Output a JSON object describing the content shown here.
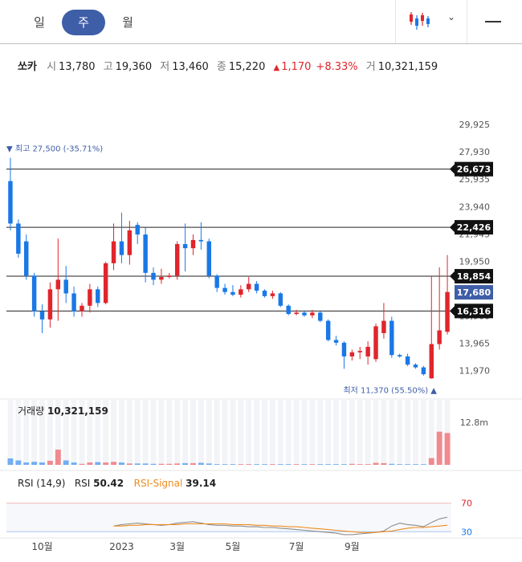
{
  "tabs": [
    {
      "label": "일",
      "active": false
    },
    {
      "label": "주",
      "active": true
    },
    {
      "label": "월",
      "active": false
    }
  ],
  "chart_type_icon": "candlestick-icon",
  "quote": {
    "name": "쏘카",
    "open_label": "시",
    "open": "13,780",
    "high_label": "고",
    "high": "19,360",
    "low_label": "저",
    "low": "13,460",
    "close_label": "종",
    "close": "15,220",
    "change_arrow": "▲",
    "change": "1,170",
    "change_pct": "+8.33%",
    "volume_label": "거",
    "volume": "10,321,159"
  },
  "colors": {
    "up": "#e0252c",
    "down": "#1a78e6",
    "accent": "#3f5ea8",
    "rsi": "#8c8c8c",
    "signal": "#f08c1e"
  },
  "chart_data": {
    "type": "candlestick",
    "price_axis_ticks": [
      "29,925",
      "27,930",
      "25,935",
      "23,940",
      "21,945",
      "19,950",
      "17,955",
      "15,960",
      "13,965",
      "11,970"
    ],
    "price_ylim": [
      10300,
      31400
    ],
    "horizontal_levels": [
      {
        "label": "26,673",
        "value": 26673
      },
      {
        "label": "22,426",
        "value": 22426
      },
      {
        "label": "18,854",
        "value": 18854
      },
      {
        "label": "16,316",
        "value": 16316
      }
    ],
    "current_price": {
      "label": "17,680",
      "value": 17680
    },
    "max_annotation": {
      "text": "▼ 최고 27,500 (-35.71%)",
      "value": 27500
    },
    "min_annotation": {
      "text": "최저 11,370 (55.50%) ▲",
      "value": 11370
    },
    "x_ticks": [
      {
        "label": "10월",
        "index": 4
      },
      {
        "label": "2023",
        "index": 14
      },
      {
        "label": "3월",
        "index": 21
      },
      {
        "label": "5월",
        "index": 28
      },
      {
        "label": "7월",
        "index": 36
      },
      {
        "label": "9월",
        "index": 43
      }
    ],
    "candles": [
      {
        "o": 25800,
        "h": 27500,
        "l": 22200,
        "c": 22700
      },
      {
        "o": 22700,
        "h": 23000,
        "l": 20200,
        "c": 20500
      },
      {
        "o": 21400,
        "h": 21900,
        "l": 18600,
        "c": 18900
      },
      {
        "o": 18900,
        "h": 19100,
        "l": 15900,
        "c": 16300
      },
      {
        "o": 16300,
        "h": 16800,
        "l": 14700,
        "c": 15700
      },
      {
        "o": 15700,
        "h": 18400,
        "l": 15100,
        "c": 17900
      },
      {
        "o": 17900,
        "h": 21600,
        "l": 15600,
        "c": 18600
      },
      {
        "o": 18600,
        "h": 19600,
        "l": 16900,
        "c": 17600
      },
      {
        "o": 17600,
        "h": 18100,
        "l": 15900,
        "c": 16300
      },
      {
        "o": 16300,
        "h": 16900,
        "l": 15900,
        "c": 16700
      },
      {
        "o": 16700,
        "h": 18300,
        "l": 16200,
        "c": 17900
      },
      {
        "o": 17900,
        "h": 18100,
        "l": 16600,
        "c": 16900
      },
      {
        "o": 16900,
        "h": 19900,
        "l": 16800,
        "c": 19800
      },
      {
        "o": 19800,
        "h": 22700,
        "l": 19300,
        "c": 21400
      },
      {
        "o": 21400,
        "h": 23500,
        "l": 19800,
        "c": 20400
      },
      {
        "o": 20400,
        "h": 22900,
        "l": 19700,
        "c": 22200
      },
      {
        "o": 22600,
        "h": 22800,
        "l": 21200,
        "c": 21900
      },
      {
        "o": 21900,
        "h": 22400,
        "l": 18400,
        "c": 19100
      },
      {
        "o": 19100,
        "h": 19500,
        "l": 18200,
        "c": 18600
      },
      {
        "o": 18600,
        "h": 19400,
        "l": 18300,
        "c": 18800
      },
      {
        "o": 18800,
        "h": 19100,
        "l": 18700,
        "c": 18900
      },
      {
        "o": 18900,
        "h": 21400,
        "l": 18600,
        "c": 21200
      },
      {
        "o": 21200,
        "h": 22700,
        "l": 19200,
        "c": 20900
      },
      {
        "o": 20900,
        "h": 21900,
        "l": 20400,
        "c": 21500
      },
      {
        "o": 21500,
        "h": 22800,
        "l": 20800,
        "c": 21400
      },
      {
        "o": 21400,
        "h": 21600,
        "l": 18700,
        "c": 18900
      },
      {
        "o": 18900,
        "h": 19000,
        "l": 17700,
        "c": 18000
      },
      {
        "o": 18000,
        "h": 18300,
        "l": 17500,
        "c": 17700
      },
      {
        "o": 17700,
        "h": 18200,
        "l": 17400,
        "c": 17500
      },
      {
        "o": 17500,
        "h": 18200,
        "l": 17300,
        "c": 17900
      },
      {
        "o": 17900,
        "h": 18800,
        "l": 17700,
        "c": 18300
      },
      {
        "o": 18300,
        "h": 18500,
        "l": 17600,
        "c": 17800
      },
      {
        "o": 17800,
        "h": 17900,
        "l": 17300,
        "c": 17400
      },
      {
        "o": 17400,
        "h": 17800,
        "l": 17200,
        "c": 17600
      },
      {
        "o": 17600,
        "h": 17700,
        "l": 16600,
        "c": 16700
      },
      {
        "o": 16700,
        "h": 16800,
        "l": 16000,
        "c": 16100
      },
      {
        "o": 16100,
        "h": 16400,
        "l": 16000,
        "c": 16200
      },
      {
        "o": 16200,
        "h": 16300,
        "l": 15900,
        "c": 16000
      },
      {
        "o": 16000,
        "h": 16400,
        "l": 15800,
        "c": 16200
      },
      {
        "o": 16200,
        "h": 16300,
        "l": 15500,
        "c": 15600
      },
      {
        "o": 15600,
        "h": 15700,
        "l": 14100,
        "c": 14200
      },
      {
        "o": 14200,
        "h": 14500,
        "l": 13800,
        "c": 14000
      },
      {
        "o": 14000,
        "h": 14100,
        "l": 12100,
        "c": 13000
      },
      {
        "o": 13000,
        "h": 13500,
        "l": 12700,
        "c": 13300
      },
      {
        "o": 13300,
        "h": 13700,
        "l": 12800,
        "c": 13400
      },
      {
        "o": 13000,
        "h": 14100,
        "l": 12400,
        "c": 13700
      },
      {
        "o": 12800,
        "h": 15400,
        "l": 12600,
        "c": 15200
      },
      {
        "o": 14700,
        "h": 16900,
        "l": 14300,
        "c": 15600
      },
      {
        "o": 15600,
        "h": 15900,
        "l": 12900,
        "c": 13100
      },
      {
        "o": 13100,
        "h": 13200,
        "l": 12900,
        "c": 13000
      },
      {
        "o": 13000,
        "h": 13200,
        "l": 12300,
        "c": 12400
      },
      {
        "o": 12400,
        "h": 12500,
        "l": 12100,
        "c": 12200
      },
      {
        "o": 12200,
        "h": 12300,
        "l": 11600,
        "c": 11700
      },
      {
        "o": 11400,
        "h": 18900,
        "l": 11370,
        "c": 13900
      },
      {
        "o": 13900,
        "h": 19500,
        "l": 13500,
        "c": 14900
      },
      {
        "o": 14800,
        "h": 20400,
        "l": 14600,
        "c": 17700
      }
    ],
    "volume": {
      "label": "거래량",
      "value": "10,321,159",
      "axis_label": "12.8m",
      "max": 12800000,
      "values": [
        1900000,
        1300000,
        700000,
        900000,
        700000,
        1200000,
        4500000,
        1300000,
        700000,
        300000,
        700000,
        800000,
        700000,
        900000,
        700000,
        400000,
        400000,
        400000,
        300000,
        300000,
        300000,
        400000,
        500000,
        500000,
        600000,
        400000,
        200000,
        200000,
        200000,
        200000,
        200000,
        200000,
        200000,
        200000,
        200000,
        200000,
        200000,
        200000,
        200000,
        200000,
        200000,
        200000,
        200000,
        300000,
        200000,
        200000,
        600000,
        500000,
        300000,
        200000,
        200000,
        200000,
        200000,
        2000000,
        9800000,
        9400000
      ]
    },
    "rsi": {
      "label": "RSI (14,9)",
      "rsi_label": "RSI",
      "rsi_value": "50.42",
      "signal_label": "RSI-Signal",
      "signal_value": "39.14",
      "levels": [
        {
          "label": "70",
          "value": 70
        },
        {
          "label": "30",
          "value": 30
        }
      ],
      "rsi_values": [
        null,
        null,
        null,
        null,
        null,
        null,
        null,
        null,
        null,
        null,
        null,
        null,
        null,
        38,
        40,
        41,
        42,
        41,
        40,
        39,
        40,
        42,
        43,
        44,
        42,
        40,
        39,
        39,
        38,
        38,
        37,
        37,
        36,
        36,
        35,
        34,
        33,
        32,
        31,
        30,
        29,
        28,
        26,
        26,
        27,
        28,
        29,
        31,
        38,
        42,
        40,
        39,
        37,
        43,
        48,
        50.42
      ],
      "signal_values": [
        null,
        null,
        null,
        null,
        null,
        null,
        null,
        null,
        null,
        null,
        null,
        null,
        null,
        38,
        38,
        39,
        39,
        40,
        40,
        40,
        40,
        40,
        41,
        41,
        41,
        41,
        41,
        41,
        40,
        40,
        40,
        39,
        39,
        38,
        38,
        37,
        37,
        36,
        35,
        34,
        33,
        32,
        31,
        30,
        29,
        29,
        29,
        30,
        31,
        33,
        35,
        36,
        36,
        37,
        38,
        39.14
      ]
    }
  }
}
